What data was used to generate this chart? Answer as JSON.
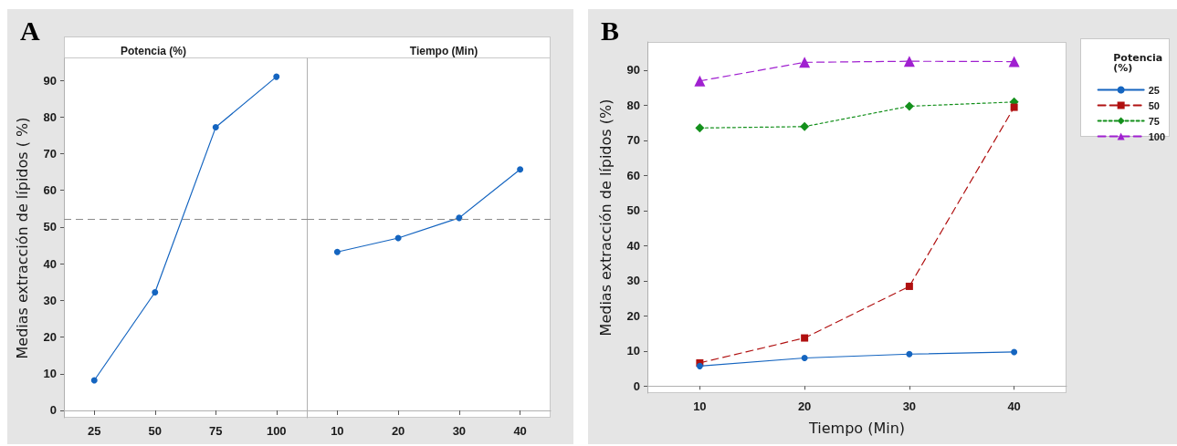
{
  "chart_data": [
    {
      "type": "line",
      "title": "Potencia (%)",
      "ylabel": "Medias extracción de lípidos ( %)",
      "annotations": [
        "A"
      ],
      "categories": [
        "25",
        "50",
        "75",
        "100"
      ],
      "series": [
        {
          "color": "#1565c0",
          "values": [
            8.2,
            32.2,
            77.2,
            91.0
          ]
        }
      ],
      "ylim": [
        -2,
        96
      ],
      "yticks": [
        0,
        10,
        20,
        30,
        40,
        50,
        60,
        70,
        80,
        90
      ],
      "marker": "circle",
      "line_style": "solid",
      "legend": false,
      "ref_lines": [
        {
          "axis": "y",
          "value": 52.2,
          "color": "#8c8c8c",
          "line_style": "dashed"
        }
      ]
    },
    {
      "type": "line",
      "title": "Tiempo (Min)",
      "categories": [
        "10",
        "20",
        "30",
        "40"
      ],
      "series": [
        {
          "color": "#1565c0",
          "values": [
            43.2,
            47.0,
            52.5,
            65.7
          ]
        }
      ],
      "ylim": [
        -2,
        96
      ],
      "yticks": [
        0,
        10,
        20,
        30,
        40,
        50,
        60,
        70,
        80,
        90
      ],
      "tick_labels": "x",
      "marker": "circle",
      "line_style": "solid",
      "legend": false,
      "ref_lines": [
        {
          "axis": "y",
          "value": 52.2,
          "color": "#8c8c8c",
          "line_style": "dashed"
        }
      ]
    },
    {
      "type": "line",
      "xlabel": "Tiempo (Min)",
      "ylabel": "Medias extracción de lípidos (%)",
      "legend_title": "Potencia (%)",
      "annotations": [
        "B"
      ],
      "x": [
        10,
        20,
        30,
        40
      ],
      "series": [
        {
          "name": "25",
          "color": "#1565c0",
          "values": [
            5.7,
            8.0,
            9.1,
            9.7
          ],
          "marker": "circle",
          "line_style": "solid"
        },
        {
          "name": "50",
          "color": "#b01010",
          "values": [
            6.6,
            13.7,
            28.4,
            79.4
          ],
          "marker": "square",
          "line_style": "dashed"
        },
        {
          "name": "75",
          "color": "#14901c",
          "values": [
            73.5,
            73.9,
            79.7,
            80.9
          ],
          "marker": "diamond",
          "line_style": "dotted"
        },
        {
          "name": "100",
          "color": "#a020d0",
          "values": [
            86.9,
            92.2,
            92.5,
            92.4
          ],
          "marker": "triangle",
          "line_style": "dashed"
        }
      ],
      "xlim": [
        5,
        45
      ],
      "xticks": [
        10,
        20,
        30,
        40
      ],
      "ylim": [
        -2,
        98
      ],
      "yticks": [
        0,
        10,
        20,
        30,
        40,
        50,
        60,
        70,
        80,
        90
      ],
      "legend": "right"
    }
  ]
}
